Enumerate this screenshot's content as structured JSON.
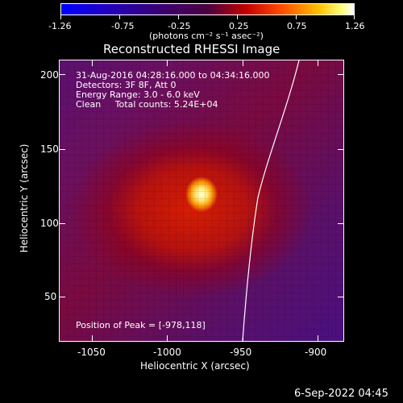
{
  "colorbar": {
    "tick_labels": [
      "-1.26",
      "-0.75",
      "-0.25",
      "0.25",
      "0.75",
      "1.26"
    ],
    "units": "(photons cm⁻² s⁻¹ asec⁻²)"
  },
  "title": "Reconstructed RHESSI Image",
  "info": {
    "line1": "31-Aug-2016 04:28:16.000 to 04:34:16.000",
    "line2": "Detectors: 3F 8F, Att 0",
    "line3": "Energy Range: 3.0 - 6.0 keV",
    "line4": "Clean     Total counts: 5.24E+04"
  },
  "peak": "Position of Peak = [-978,118]",
  "axes": {
    "xlabel": "Heliocentric X (arcsec)",
    "ylabel": "Heliocentric Y (arcsec)",
    "x_ticks": [
      "-1050",
      "-1000",
      "-950",
      "-900"
    ],
    "y_ticks": [
      "50",
      "100",
      "150",
      "200"
    ]
  },
  "footer_date": "6-Sep-2022 04:45",
  "colors": {
    "accent_white": "#ffffff",
    "background": "#000000"
  }
}
